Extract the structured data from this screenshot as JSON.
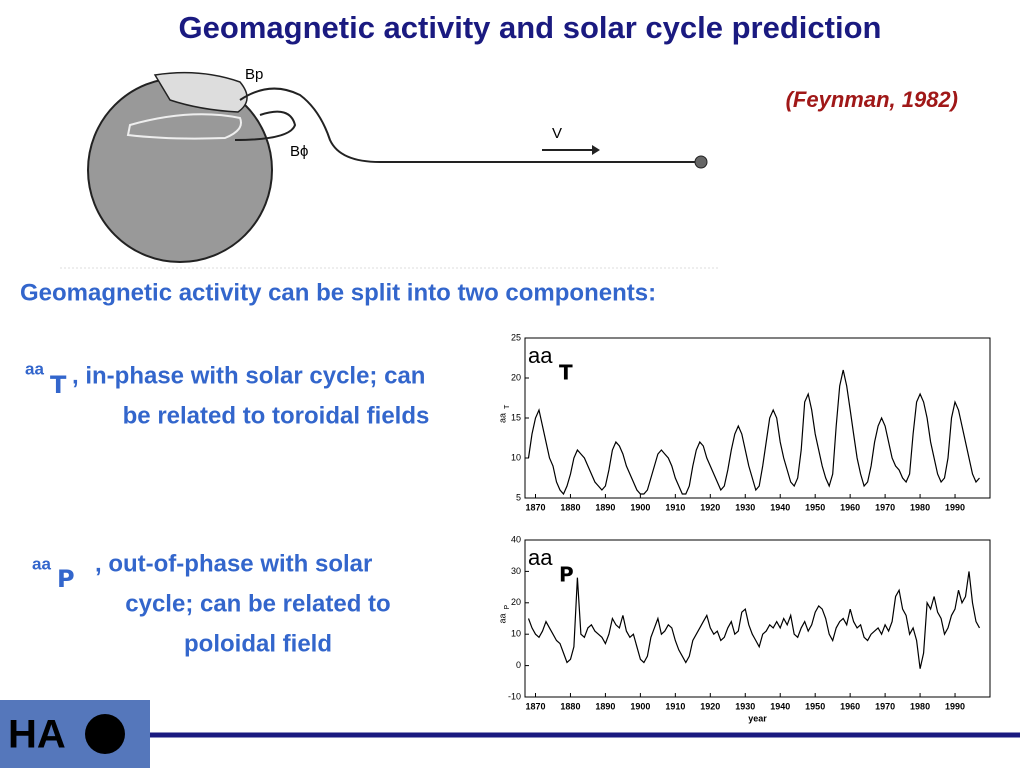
{
  "title": "Geomagnetic activity and solar cycle prediction",
  "citation": "(Feynman, 1982)",
  "diagram": {
    "bp": "Bp",
    "bphi": "Bϕ",
    "v": "V"
  },
  "intro": "Geomagnetic activity can be split into two components:",
  "items": [
    {
      "sym": "aa",
      "sub": "T",
      "lines": [
        ", in-phase with solar cycle; can",
        "be related to toroidal fields"
      ]
    },
    {
      "sym": "aa",
      "sub": "P",
      "lines": [
        ", out-of-phase with solar",
        "cycle; can be related to",
        "poloidal field"
      ]
    }
  ],
  "logo": "HA",
  "chart_data": [
    {
      "type": "line",
      "ylabel": "aa",
      "ylabel_sub": "T",
      "overlay": "aa",
      "overlay_sub": "T",
      "color": "#000000",
      "xlim": [
        1867,
        2000
      ],
      "ylim": [
        5,
        25
      ],
      "yticks": [
        5,
        10,
        15,
        20,
        25
      ],
      "xticks": [
        1870,
        1880,
        1890,
        1900,
        1910,
        1920,
        1930,
        1940,
        1950,
        1960,
        1970,
        1980,
        1990
      ],
      "x_start": 1868,
      "values": [
        10,
        13,
        15,
        16,
        14,
        12,
        10,
        9,
        7,
        6,
        5.5,
        6.5,
        8,
        10,
        11,
        10.5,
        10,
        9,
        8,
        7,
        6.5,
        6,
        6.5,
        8.5,
        11,
        12,
        11.5,
        10.5,
        9,
        8,
        7,
        6,
        5.5,
        5.5,
        6,
        7.5,
        9,
        10.5,
        11,
        10.5,
        10,
        9,
        7.5,
        6.5,
        5.5,
        5.5,
        6.5,
        9,
        11,
        12,
        11.5,
        10,
        9,
        8,
        7,
        6,
        6.5,
        8.5,
        11,
        13,
        14,
        13,
        11,
        9,
        7.5,
        6,
        6.5,
        9,
        12,
        15,
        16,
        15,
        12,
        10,
        8.5,
        7,
        6.5,
        7.5,
        11,
        17,
        18,
        16,
        13,
        11,
        9,
        7.5,
        6.5,
        8,
        14,
        19,
        21,
        19,
        16,
        13,
        10,
        8,
        6.5,
        7,
        9,
        12,
        14,
        15,
        14,
        12,
        10,
        9,
        8.5,
        7.5,
        7,
        8,
        13,
        17,
        18,
        17,
        15,
        12,
        10,
        8,
        7,
        7.5,
        10,
        15,
        17,
        16,
        14,
        12,
        10,
        8,
        7,
        7.5
      ]
    },
    {
      "type": "line",
      "ylabel": "aa",
      "ylabel_sub": "P",
      "overlay": "aa",
      "overlay_sub": "P",
      "xlabel": "year",
      "color": "#000000",
      "xlim": [
        1867,
        2000
      ],
      "ylim": [
        -10,
        40
      ],
      "yticks": [
        -10,
        0,
        10,
        20,
        30,
        40
      ],
      "xticks": [
        1870,
        1880,
        1890,
        1900,
        1910,
        1920,
        1930,
        1940,
        1950,
        1960,
        1970,
        1980,
        1990
      ],
      "x_start": 1868,
      "values": [
        15,
        12,
        10,
        9,
        11,
        14,
        12,
        10,
        8,
        7,
        4,
        1,
        2,
        6,
        28,
        10,
        9,
        12,
        13,
        11,
        10,
        9,
        7,
        10,
        15,
        13,
        12,
        16,
        11,
        9,
        10,
        6,
        2,
        1,
        3,
        9,
        12,
        15,
        10,
        11,
        13,
        12,
        8,
        5,
        3,
        1,
        3,
        8,
        10,
        12,
        14,
        16,
        12,
        10,
        11,
        8,
        9,
        12,
        14,
        10,
        11,
        17,
        18,
        13,
        10,
        8,
        6,
        10,
        11,
        13,
        12,
        14,
        12,
        15,
        13,
        16,
        10,
        9,
        12,
        14,
        11,
        13,
        17,
        19,
        18,
        15,
        10,
        8,
        12,
        14,
        15,
        13,
        18,
        14,
        12,
        13,
        9,
        8,
        10,
        11,
        12,
        10,
        13,
        11,
        14,
        22,
        24,
        18,
        16,
        10,
        12,
        8,
        -1,
        4,
        20,
        18,
        22,
        17,
        15,
        10,
        12,
        16,
        18,
        24,
        20,
        22,
        30,
        20,
        14,
        12
      ]
    }
  ]
}
